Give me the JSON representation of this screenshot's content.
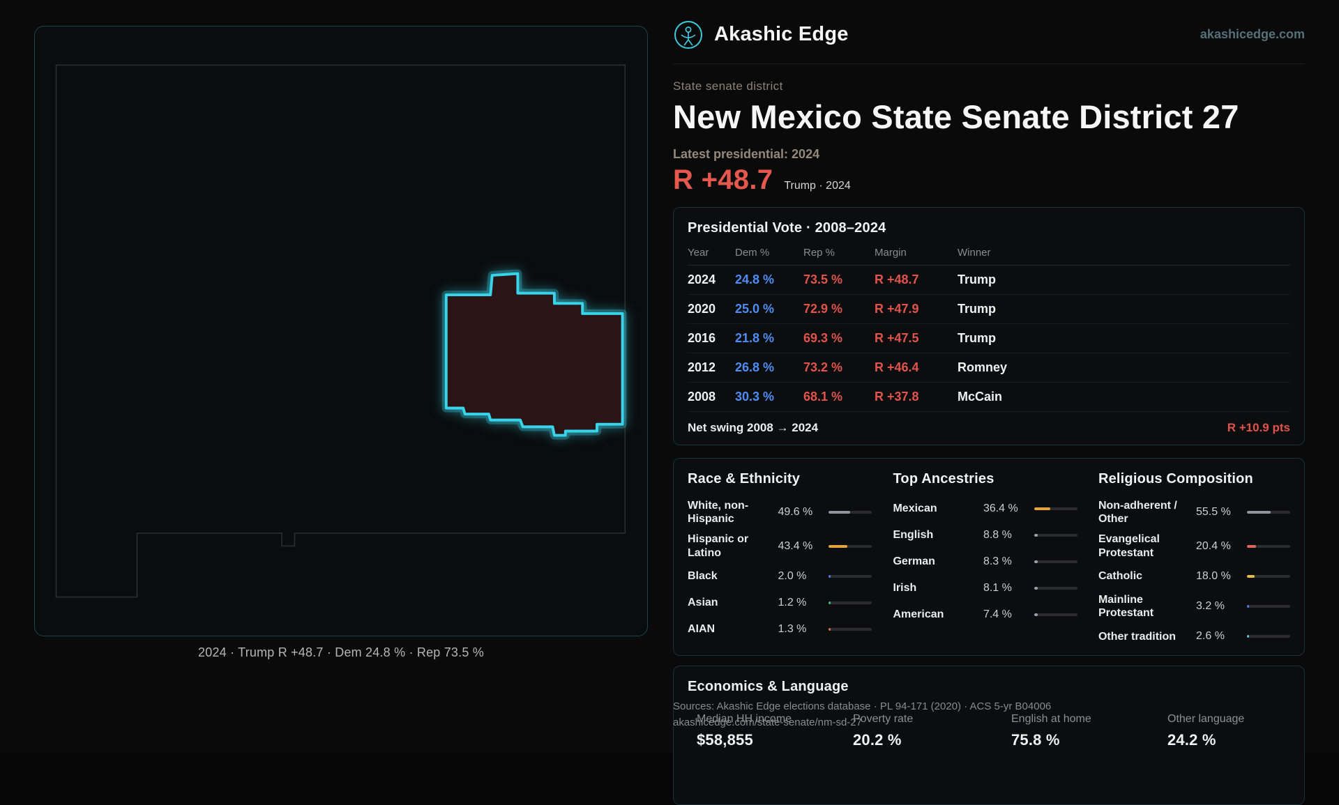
{
  "header": {
    "brand": "Akashic Edge",
    "domain": "akashicedge.com"
  },
  "hero": {
    "kicker": "State senate district",
    "title": "New Mexico State Senate District 27",
    "latest": "Latest presidential: 2024",
    "margin": "R +48.7",
    "margin_context": "Trump · 2024"
  },
  "map": {
    "caption": "2024 · Trump R +48.7 · Dem 24.8 % · Rep 73.5 %"
  },
  "presidential": {
    "title": "Presidential Vote · 2008–2024",
    "columns": [
      "Year",
      "Dem %",
      "Rep %",
      "Margin",
      "Winner"
    ],
    "rows": [
      {
        "year": "2024",
        "dem": "24.8 %",
        "rep": "73.5 %",
        "margin": "R +48.7",
        "winner": "Trump"
      },
      {
        "year": "2020",
        "dem": "25.0 %",
        "rep": "72.9 %",
        "margin": "R +47.9",
        "winner": "Trump"
      },
      {
        "year": "2016",
        "dem": "21.8 %",
        "rep": "69.3 %",
        "margin": "R +47.5",
        "winner": "Trump"
      },
      {
        "year": "2012",
        "dem": "26.8 %",
        "rep": "73.2 %",
        "margin": "R +46.4",
        "winner": "Romney"
      },
      {
        "year": "2008",
        "dem": "30.3 %",
        "rep": "68.1 %",
        "margin": "R +37.8",
        "winner": "McCain"
      }
    ],
    "net_swing_label": "Net swing 2008 → 2024",
    "net_swing_value": "R +10.9 pts"
  },
  "demographics": {
    "race": {
      "title": "Race & Ethnicity",
      "rows": [
        {
          "label": "White, non-Hispanic",
          "value": "49.6 %",
          "pct": 49.6,
          "color": "#9094a0"
        },
        {
          "label": "Hispanic or Latino",
          "value": "43.4 %",
          "pct": 43.4,
          "color": "#e3a43c"
        },
        {
          "label": "Black",
          "value": "2.0 %",
          "pct": 2.0,
          "color": "#4d7df2"
        },
        {
          "label": "Asian",
          "value": "1.2 %",
          "pct": 1.2,
          "color": "#3dbd82"
        },
        {
          "label": "AIAN",
          "value": "1.3 %",
          "pct": 1.3,
          "color": "#e06a4a"
        }
      ]
    },
    "ancestries": {
      "title": "Top Ancestries",
      "rows": [
        {
          "label": "Mexican",
          "value": "36.4 %",
          "pct": 36.4,
          "color": "#e3a43c"
        },
        {
          "label": "English",
          "value": "8.8 %",
          "pct": 8.8,
          "color": "#9aa0ab"
        },
        {
          "label": "German",
          "value": "8.3 %",
          "pct": 8.3,
          "color": "#9aa0ab"
        },
        {
          "label": "Irish",
          "value": "8.1 %",
          "pct": 8.1,
          "color": "#9aa0ab"
        },
        {
          "label": "American",
          "value": "7.4 %",
          "pct": 7.4,
          "color": "#9aa0ab"
        }
      ]
    },
    "religion": {
      "title": "Religious Composition",
      "rows": [
        {
          "label": "Non-adherent / Other",
          "value": "55.5 %",
          "pct": 55.5,
          "color": "#9094a0"
        },
        {
          "label": "Evangelical Protestant",
          "value": "20.4 %",
          "pct": 20.4,
          "color": "#e0635c"
        },
        {
          "label": "Catholic",
          "value": "18.0 %",
          "pct": 18.0,
          "color": "#e2bd45"
        },
        {
          "label": "Mainline Protestant",
          "value": "3.2 %",
          "pct": 3.2,
          "color": "#4d7df2"
        },
        {
          "label": "Other tradition",
          "value": "2.6 %",
          "pct": 2.6,
          "color": "#58c5cf"
        }
      ]
    }
  },
  "economics": {
    "title": "Economics & Language",
    "stats": [
      {
        "label": "Median HH income",
        "value": "$58,855"
      },
      {
        "label": "Poverty rate",
        "value": "20.2 %"
      },
      {
        "label": "English at home",
        "value": "75.8 %"
      },
      {
        "label": "Other language",
        "value": "24.2 %"
      }
    ]
  },
  "sources": {
    "line1": "Sources: Akashic Edge elections database · PL 94-171 (2020) · ACS 5-yr B04006",
    "line2": "akashicedge.com/state-senate/nm-sd-27"
  },
  "colors": {
    "accent_cyan": "#38d4e9",
    "rep_red": "#e0544c",
    "dem_blue": "#4d8df5",
    "district_fill": "#2a1416"
  }
}
